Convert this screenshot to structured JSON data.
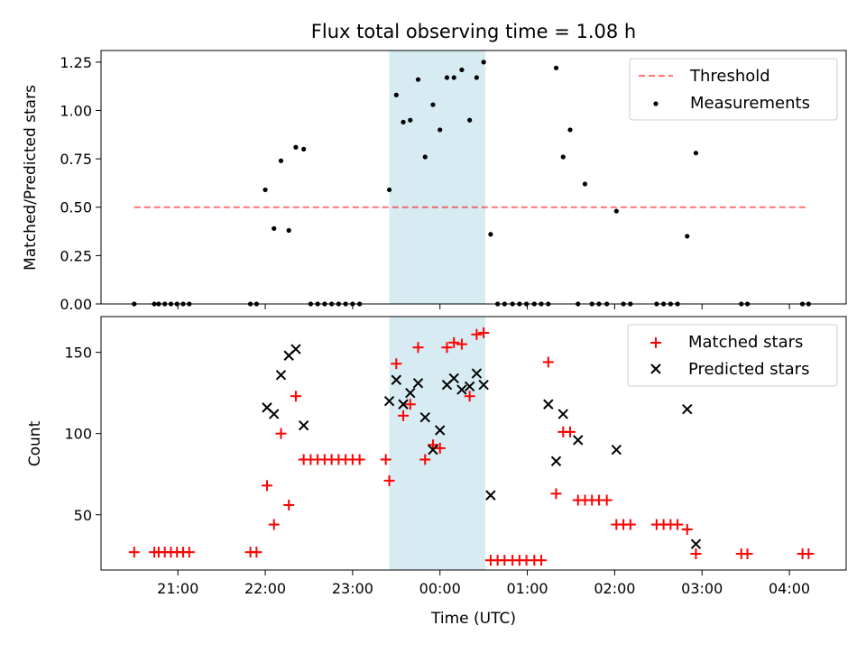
{
  "chart_data": [
    {
      "type": "scatter",
      "title": "Flux total observing time = 1.08 h",
      "xlabel": "",
      "ylabel": "Matched/Predicted stars",
      "ylim": [
        0,
        1.31
      ],
      "yticks": [
        "0.00",
        "0.25",
        "0.50",
        "0.75",
        "1.00",
        "1.25"
      ],
      "ytick_values": [
        0,
        0.25,
        0.5,
        0.75,
        1.0,
        1.25
      ],
      "xlim": [
        20.12,
        28.65
      ],
      "highlight_span": {
        "start": 23.42,
        "end": 24.52,
        "color": "#add8e6"
      },
      "threshold": {
        "label": "Threshold",
        "value": 0.5,
        "start": 20.5,
        "end": 28.22,
        "color": "#ff0000"
      },
      "legend": [
        "Threshold",
        "Measurements"
      ],
      "series": [
        {
          "name": "Measurements",
          "color": "#000000",
          "x": [
            20.5,
            20.73,
            20.78,
            20.85,
            20.92,
            20.99,
            21.06,
            21.13,
            21.83,
            21.9,
            22.0,
            22.1,
            22.18,
            22.27,
            22.35,
            22.44,
            22.52,
            22.6,
            22.68,
            22.76,
            22.84,
            22.92,
            23.0,
            23.08,
            23.42,
            23.5,
            23.58,
            23.66,
            23.75,
            23.83,
            23.92,
            24.0,
            24.08,
            24.16,
            24.25,
            24.34,
            24.42,
            24.5,
            24.58,
            24.66,
            24.74,
            24.83,
            24.91,
            24.99,
            25.08,
            25.16,
            25.24,
            25.33,
            25.41,
            25.49,
            25.58,
            25.66,
            25.74,
            25.82,
            25.91,
            26.02,
            26.1,
            26.18,
            26.48,
            26.56,
            26.64,
            26.72,
            26.83,
            26.93,
            27.45,
            27.52,
            28.15,
            28.22
          ],
          "y": [
            0,
            0,
            0,
            0,
            0,
            0,
            0,
            0,
            0,
            0,
            0.59,
            0.39,
            0.74,
            0.38,
            0.81,
            0.8,
            0,
            0,
            0,
            0,
            0,
            0,
            0,
            0,
            0.59,
            1.08,
            0.94,
            0.95,
            1.16,
            0.76,
            1.03,
            0.9,
            1.17,
            1.17,
            1.21,
            0.95,
            1.17,
            1.25,
            0.36,
            0,
            0,
            0,
            0,
            0,
            0,
            0,
            0,
            1.22,
            0.76,
            0.9,
            0,
            0.62,
            0,
            0,
            0,
            0.48,
            0,
            0,
            0,
            0,
            0,
            0,
            0.35,
            0.78,
            0,
            0,
            0,
            0
          ]
        }
      ]
    },
    {
      "type": "scatter",
      "title": "",
      "xlabel": "Time (UTC)",
      "ylabel": "Count",
      "ylim": [
        16,
        172
      ],
      "yticks": [
        "50",
        "100",
        "150"
      ],
      "ytick_values": [
        50,
        100,
        150
      ],
      "xlim": [
        20.12,
        28.65
      ],
      "xticks": [
        "21:00",
        "22:00",
        "23:00",
        "00:00",
        "01:00",
        "02:00",
        "03:00",
        "04:00"
      ],
      "xtick_values": [
        21,
        22,
        23,
        24,
        25,
        26,
        27,
        28
      ],
      "highlight_span": {
        "start": 23.42,
        "end": 24.52,
        "color": "#add8e6"
      },
      "legend": [
        "Matched stars",
        "Predicted stars"
      ],
      "series": [
        {
          "name": "Matched stars",
          "color": "#ff0000",
          "marker": "+",
          "x": [
            20.5,
            20.73,
            20.78,
            20.85,
            20.92,
            20.99,
            21.06,
            21.13,
            21.83,
            21.9,
            22.02,
            22.1,
            22.18,
            22.27,
            22.35,
            22.44,
            22.52,
            22.6,
            22.68,
            22.76,
            22.84,
            22.92,
            23.0,
            23.08,
            23.38,
            23.42,
            23.5,
            23.58,
            23.66,
            23.75,
            23.83,
            23.92,
            24.0,
            24.08,
            24.16,
            24.25,
            24.34,
            24.42,
            24.5,
            24.58,
            24.66,
            24.74,
            24.83,
            24.91,
            24.99,
            25.08,
            25.16,
            25.24,
            25.33,
            25.41,
            25.49,
            25.58,
            25.66,
            25.74,
            25.82,
            25.91,
            26.02,
            26.1,
            26.18,
            26.48,
            26.56,
            26.64,
            26.72,
            26.83,
            26.93,
            27.45,
            27.52,
            28.15,
            28.22
          ],
          "y": [
            27,
            27,
            27,
            27,
            27,
            27,
            27,
            27,
            27,
            27,
            68,
            44,
            100,
            56,
            123,
            84,
            84,
            84,
            84,
            84,
            84,
            84,
            84,
            84,
            84,
            71,
            143,
            111,
            118,
            153,
            84,
            93,
            91,
            153,
            156,
            155,
            123,
            161,
            162,
            22,
            22,
            22,
            22,
            22,
            22,
            22,
            22,
            144,
            63,
            101,
            101,
            59,
            59,
            59,
            59,
            59,
            44,
            44,
            44,
            44,
            44,
            44,
            44,
            41,
            26,
            26,
            26,
            26,
            26
          ]
        },
        {
          "name": "Predicted stars",
          "color": "#000000",
          "marker": "x",
          "x": [
            22.02,
            22.1,
            22.18,
            22.27,
            22.35,
            22.44,
            23.42,
            23.5,
            23.58,
            23.66,
            23.75,
            23.83,
            23.92,
            24.0,
            24.08,
            24.16,
            24.25,
            24.34,
            24.42,
            24.5,
            24.58,
            25.24,
            25.33,
            25.41,
            25.58,
            26.02,
            26.83,
            26.93
          ],
          "y": [
            116,
            112,
            136,
            148,
            152,
            105,
            120,
            133,
            118,
            125,
            131,
            110,
            90,
            102,
            130,
            134,
            127,
            129,
            137,
            130,
            62,
            118,
            83,
            112,
            96,
            90,
            115,
            32
          ]
        }
      ]
    }
  ]
}
